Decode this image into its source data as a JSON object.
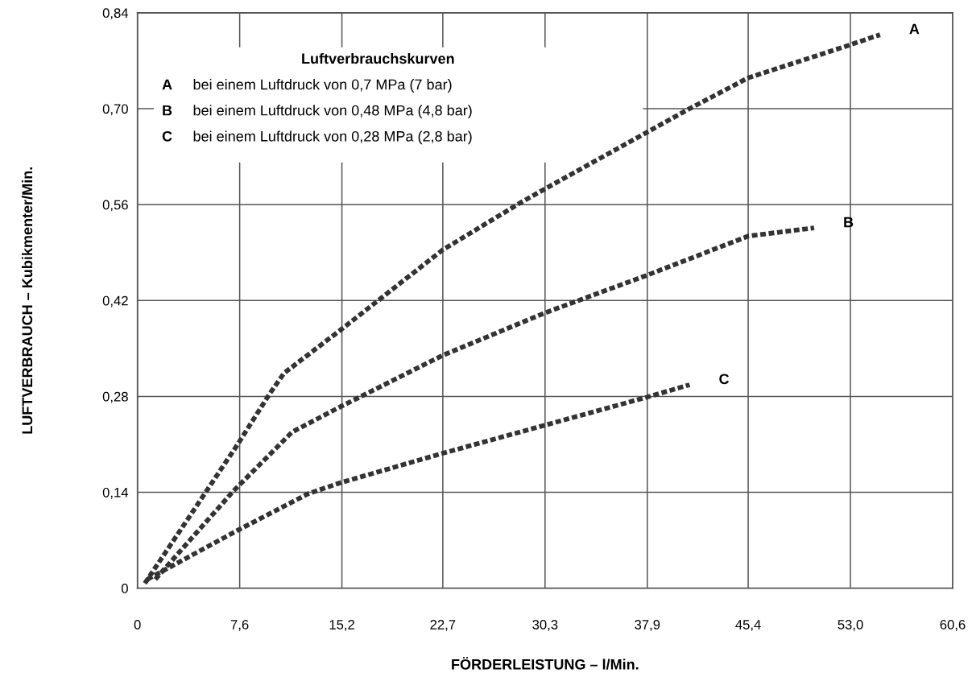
{
  "chart_data": {
    "type": "line",
    "xlabel": "FÖRDERLEISTUNG – l/Min.",
    "ylabel": "LUFTVERBRAUCH – Kubikmenter/Min.",
    "legend_title": "Luftverbrauchskurven",
    "annotations": [
      "bei einem Luftdruck von 0,7 MPa (7 bar)",
      "bei einem Luftdruck von 0,48 MPa (4,8 bar)",
      "bei einem Luftdruck von 0,28 MPa (2,8 bar)"
    ],
    "series": [
      {
        "name": "A",
        "color": "#333333",
        "x": [
          0.55,
          7.45,
          9.8,
          10.9,
          15.1,
          22.7,
          28.5,
          30.3,
          40.85,
          45.4,
          52.8,
          55.2
        ],
        "values": [
          0.007,
          0.21,
          0.283,
          0.314,
          0.377,
          0.494,
          0.563,
          0.583,
          0.698,
          0.745,
          0.792,
          0.808
        ]
      },
      {
        "name": "B",
        "color": "#333333",
        "x": [
          1.33,
          7.14,
          11.5,
          15.1,
          22.7,
          30.3,
          37.9,
          45.4,
          50.3
        ],
        "values": [
          0.013,
          0.142,
          0.228,
          0.265,
          0.34,
          0.402,
          0.457,
          0.514,
          0.526
        ]
      },
      {
        "name": "C",
        "color": "#333333",
        "x": [
          0.74,
          7.5,
          12.7,
          15.1,
          22.7,
          30.3,
          37.9,
          41.05
        ],
        "values": [
          0.013,
          0.085,
          0.138,
          0.154,
          0.197,
          0.238,
          0.279,
          0.297
        ]
      }
    ],
    "xlim": [
      0,
      60.6
    ],
    "xticks": [
      0,
      {
        "value": 7.6,
        "label": "7,6"
      },
      {
        "value": 15.2,
        "label": "15,2"
      },
      {
        "value": 22.7,
        "label": "22,7"
      },
      {
        "value": 30.3,
        "label": "30,3"
      },
      {
        "value": 37.9,
        "label": "37,9"
      },
      {
        "value": 45.4,
        "label": "45,4"
      },
      {
        "value": 53.0,
        "label": "53,0"
      },
      {
        "value": 60.6,
        "label": "60,6"
      }
    ],
    "ylim": [
      0,
      0.84
    ],
    "yticks": [
      0,
      {
        "value": 0.14,
        "label": "0,14"
      },
      {
        "value": 0.28,
        "label": "0,28"
      },
      {
        "value": 0.42,
        "label": "0,42"
      },
      {
        "value": 0.56,
        "label": "0,56"
      },
      {
        "value": 0.7,
        "label": "0,70"
      },
      {
        "value": 0.84,
        "label": "0,84"
      }
    ],
    "grid": true,
    "line_style": "dashed",
    "marker": "none"
  }
}
